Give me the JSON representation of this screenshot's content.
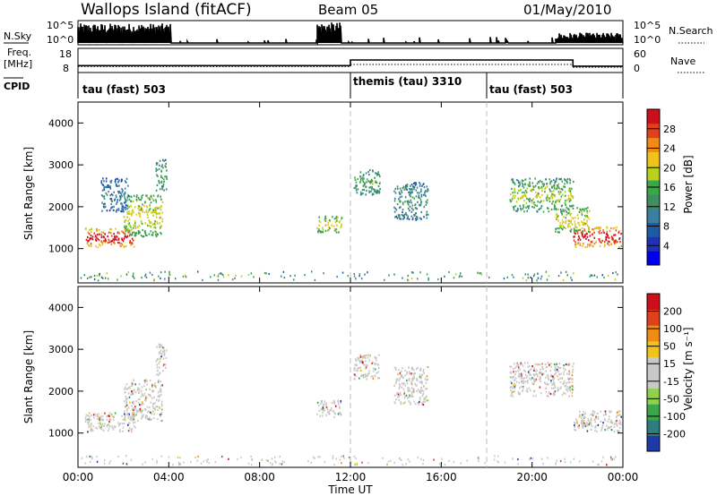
{
  "header": {
    "station": "Wallops Island (fitACF)",
    "beam": "Beam 05",
    "date": "01/May/2010"
  },
  "status_panels": {
    "nsky_label": "N.Sky",
    "nsky_ticks": [
      "10^5",
      "10^0"
    ],
    "nsearch_label": "N.Search",
    "freq_label_1": "Freq.",
    "freq_label_2": "[MHz]",
    "freq_ticks": [
      "18",
      "8"
    ],
    "nave_label": "Nave",
    "nave_ticks": [
      "60",
      "0"
    ],
    "cpid_label": "CPID",
    "cpid_segments": [
      {
        "label": "tau (fast) 503",
        "start": 0,
        "end": 12
      },
      {
        "label": "themis (tau) 3310",
        "start": 12,
        "end": 18
      },
      {
        "label": "tau (fast) 503",
        "start": 18,
        "end": 24
      }
    ],
    "freq_steps": [
      {
        "start": 0,
        "end": 12,
        "mhz": 10.5
      },
      {
        "start": 12,
        "end": 21.8,
        "mhz": 13.2
      },
      {
        "start": 21.8,
        "end": 24,
        "mhz": 10.2
      }
    ]
  },
  "chart_data": [
    {
      "type": "heatmap",
      "panel": "power",
      "ylabel": "Slant Range [km]",
      "yticks": [
        1000,
        2000,
        3000,
        4000
      ],
      "ylim": [
        180,
        4500
      ],
      "xlim": [
        0,
        24
      ],
      "colorbar": {
        "label": "Power [dB]",
        "ticks": [
          "28",
          "24",
          "20",
          "16",
          "12",
          "8",
          "4"
        ],
        "colors": [
          "#0000ee",
          "#2030b8",
          "#1f5aa6",
          "#3b7fa0",
          "#3e8e62",
          "#3aa84a",
          "#b9d11d",
          "#f0c21a",
          "#f08b14",
          "#e0411d",
          "#cc0f1a"
        ]
      },
      "echo_regions": [
        {
          "t0": 0.3,
          "t1": 2.5,
          "r0": 1050,
          "r1": 1500,
          "level": 10
        },
        {
          "t0": 2.0,
          "t1": 3.7,
          "r0": 1300,
          "r1": 2300,
          "level": 6
        },
        {
          "t0": 3.4,
          "t1": 3.9,
          "r0": 2400,
          "r1": 3150,
          "level": 4
        },
        {
          "t0": 1.0,
          "t1": 2.2,
          "r0": 1900,
          "r1": 2700,
          "level": 2
        },
        {
          "t0": 10.5,
          "t1": 11.6,
          "r0": 1400,
          "r1": 1800,
          "level": 6
        },
        {
          "t0": 12.1,
          "t1": 13.3,
          "r0": 2300,
          "r1": 2900,
          "level": 4
        },
        {
          "t0": 13.9,
          "t1": 15.4,
          "r0": 1700,
          "r1": 2600,
          "level": 3
        },
        {
          "t0": 19.0,
          "t1": 21.8,
          "r0": 1900,
          "r1": 2700,
          "level": 5
        },
        {
          "t0": 21.8,
          "t1": 23.9,
          "r0": 1050,
          "r1": 1550,
          "level": 10
        },
        {
          "t0": 21.0,
          "t1": 22.5,
          "r0": 1400,
          "r1": 2000,
          "level": 6
        }
      ]
    },
    {
      "type": "heatmap",
      "panel": "velocity",
      "ylabel": "Slant Range [km]",
      "yticks": [
        1000,
        2000,
        3000,
        4000
      ],
      "ylim": [
        180,
        4500
      ],
      "xlim": [
        0,
        24
      ],
      "xticks": [
        "00:00",
        "04:00",
        "08:00",
        "12:00",
        "16:00",
        "20:00",
        "00:00"
      ],
      "xlabel": "Time UT",
      "colorbar": {
        "label": "Velocity [m s⁻¹]",
        "ticks": [
          "200",
          "100",
          "50",
          "15",
          "-15",
          "-50",
          "-100",
          "-200"
        ],
        "colors": [
          "#1f3aa6",
          "#2e7d80",
          "#3aa84a",
          "#8fd14f",
          "#c8c8c8",
          "#c8c8c8",
          "#f0c21a",
          "#f08b14",
          "#e0411d",
          "#cc0f1a"
        ]
      },
      "echo_regions": [
        {
          "t0": 0.3,
          "t1": 2.5,
          "r0": 1050,
          "r1": 1500
        },
        {
          "t0": 2.0,
          "t1": 3.7,
          "r0": 1300,
          "r1": 2300
        },
        {
          "t0": 3.4,
          "t1": 3.9,
          "r0": 2400,
          "r1": 3150
        },
        {
          "t0": 10.5,
          "t1": 11.6,
          "r0": 1400,
          "r1": 1800
        },
        {
          "t0": 12.1,
          "t1": 13.3,
          "r0": 2300,
          "r1": 2900
        },
        {
          "t0": 13.9,
          "t1": 15.4,
          "r0": 1700,
          "r1": 2600
        },
        {
          "t0": 19.0,
          "t1": 21.8,
          "r0": 1900,
          "r1": 2700
        },
        {
          "t0": 21.8,
          "t1": 23.9,
          "r0": 1050,
          "r1": 1550
        }
      ]
    }
  ]
}
